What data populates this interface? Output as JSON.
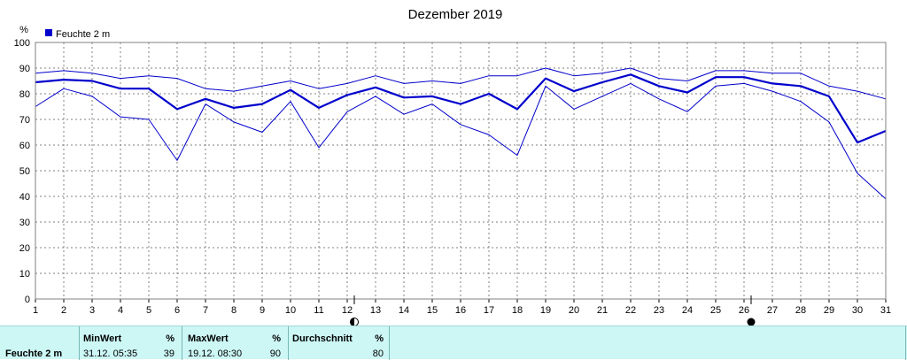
{
  "chart_data": {
    "type": "line",
    "title": "Dezember 2019",
    "ylabel": "%",
    "ylim": [
      0,
      100
    ],
    "yticks": [
      0,
      10,
      20,
      30,
      40,
      50,
      60,
      70,
      80,
      90,
      100
    ],
    "xlim": [
      1,
      31
    ],
    "x": [
      1,
      2,
      3,
      4,
      5,
      6,
      7,
      8,
      9,
      10,
      11,
      12,
      13,
      14,
      15,
      16,
      17,
      18,
      19,
      20,
      21,
      22,
      23,
      24,
      25,
      26,
      27,
      28,
      29,
      30,
      31
    ],
    "grid": true,
    "legend": {
      "position": "top-left",
      "entries": [
        "Feuchte  2 m"
      ]
    },
    "series": [
      {
        "name": "Feuchte  2 m",
        "role": "mean",
        "color": "#0000cc",
        "values": [
          84.5,
          85.5,
          85,
          82,
          82,
          74,
          78,
          74.5,
          76,
          81.5,
          74.5,
          79.5,
          82.5,
          78.5,
          79,
          76,
          80,
          74,
          86,
          81,
          84.5,
          87.5,
          83,
          80.5,
          86.5,
          86.5,
          84,
          83,
          79,
          61,
          65.5
        ]
      },
      {
        "role": "max",
        "color": "#0000cc",
        "values": [
          88,
          89,
          88,
          86,
          87,
          86,
          82,
          81,
          83,
          85,
          82,
          84,
          87,
          84,
          85,
          84,
          87,
          87,
          90,
          87,
          88,
          90,
          86,
          85,
          89,
          89,
          88,
          88,
          83,
          81,
          78
        ]
      },
      {
        "role": "min",
        "color": "#0000cc",
        "values": [
          75,
          82,
          79,
          71,
          70,
          54,
          76,
          69,
          65,
          77,
          59,
          73,
          79,
          72,
          76,
          68,
          64,
          56,
          83,
          74,
          79,
          84,
          78,
          73,
          83,
          84,
          81,
          77,
          69,
          49,
          39
        ]
      }
    ],
    "markers": [
      {
        "x": 12.25,
        "symbol": "first-quarter-moon"
      },
      {
        "x": 26.25,
        "symbol": "new-moon"
      }
    ]
  },
  "stats": {
    "row_label": "Feuchte  2 m",
    "min": {
      "header": "MinWert",
      "unit": "%",
      "date": "31.12.  05:35",
      "value": "39"
    },
    "max": {
      "header": "MaxWert",
      "unit": "%",
      "date": "19.12.  08:30",
      "value": "90"
    },
    "avg": {
      "header": "Durchschnitt",
      "unit": "%",
      "value": "80"
    }
  }
}
